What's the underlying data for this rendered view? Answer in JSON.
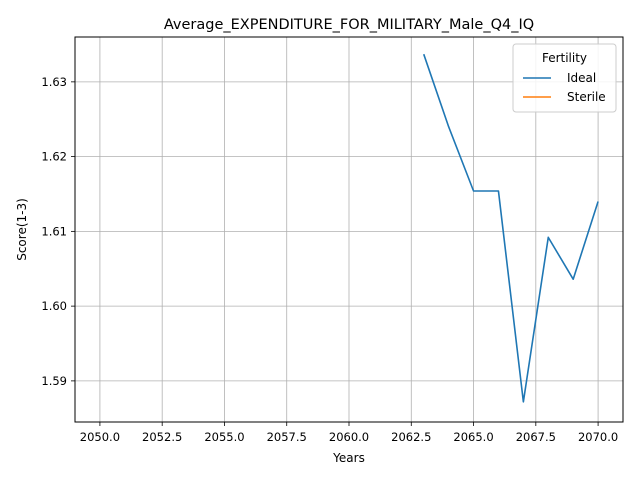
{
  "chart_data": {
    "type": "line",
    "title": "Average_EXPENDITURE_FOR_MILITARY_Male_Q4_IQ",
    "xlabel": "Years",
    "ylabel": "Score(1-3)",
    "xlim": [
      2049.0,
      2071.0
    ],
    "ylim": [
      1.5845,
      1.636
    ],
    "xticks": [
      2050.0,
      2052.5,
      2055.0,
      2057.5,
      2060.0,
      2062.5,
      2065.0,
      2067.5,
      2070.0
    ],
    "xtick_labels": [
      "2050.0",
      "2052.5",
      "2055.0",
      "2057.5",
      "2060.0",
      "2062.5",
      "2065.0",
      "2067.5",
      "2070.0"
    ],
    "yticks": [
      1.59,
      1.6,
      1.61,
      1.62,
      1.63
    ],
    "ytick_labels": [
      "1.59",
      "1.60",
      "1.61",
      "1.62",
      "1.63"
    ],
    "grid": true,
    "legend": {
      "title": "Fertility",
      "placement": "top-right"
    },
    "series": [
      {
        "name": "Ideal",
        "color": "#1f77b4",
        "x": [
          2063,
          2064,
          2065,
          2066,
          2067,
          2068,
          2069,
          2070
        ],
        "y": [
          1.6337,
          1.624,
          1.6154,
          1.6154,
          1.5872,
          1.6092,
          1.6036,
          1.614
        ]
      },
      {
        "name": "Sterile",
        "color": "#ff7f0e",
        "x": [],
        "y": []
      }
    ]
  }
}
